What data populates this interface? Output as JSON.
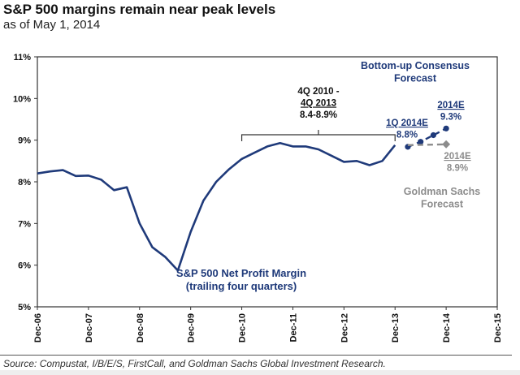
{
  "header": {
    "title": "S&P 500 margins remain near peak levels",
    "subtitle": "as of May 1, 2014"
  },
  "footer": {
    "source": "Source: Compustat, I/B/E/S, FirstCall, and Goldman Sachs Global Investment Research."
  },
  "chart_data": {
    "type": "line",
    "title": "S&P 500 margins remain near peak levels",
    "subtitle": "as of May 1, 2014",
    "xlabel": "",
    "ylabel": "",
    "ylim": [
      5,
      11
    ],
    "xlim": [
      2006.917,
      2015.917
    ],
    "grid": false,
    "y_ticks": [
      "5%",
      "6%",
      "7%",
      "8%",
      "9%",
      "10%",
      "11%"
    ],
    "y_tick_values": [
      5,
      6,
      7,
      8,
      9,
      10,
      11
    ],
    "x_ticks": [
      "Dec-06",
      "Dec-07",
      "Dec-08",
      "Dec-09",
      "Dec-10",
      "Dec-11",
      "Dec-12",
      "Dec-13",
      "Dec-14",
      "Dec-15"
    ],
    "series": [
      {
        "name": "S&P 500 Net Profit Margin (trailing four quarters)",
        "color": "#1f3a7a",
        "style": "solid",
        "x": [
          "4Q06",
          "1Q07",
          "2Q07",
          "3Q07",
          "4Q07",
          "1Q08",
          "2Q08",
          "3Q08",
          "4Q08",
          "1Q09",
          "2Q09",
          "3Q09",
          "4Q09",
          "1Q10",
          "2Q10",
          "3Q10",
          "4Q10",
          "1Q11",
          "2Q11",
          "3Q11",
          "4Q11",
          "1Q12",
          "2Q12",
          "3Q12",
          "4Q12",
          "1Q13",
          "2Q13",
          "3Q13",
          "4Q13"
        ],
        "values": [
          8.2,
          8.25,
          8.28,
          8.14,
          8.15,
          8.05,
          7.8,
          7.87,
          7.0,
          6.43,
          6.2,
          5.87,
          6.8,
          7.55,
          8.0,
          8.3,
          8.55,
          8.7,
          8.85,
          8.93,
          8.85,
          8.85,
          8.78,
          8.63,
          8.48,
          8.5,
          8.4,
          8.5,
          8.88
        ]
      },
      {
        "name": "Bottom-up Consensus Forecast",
        "color": "#1f3a7a",
        "style": "dashed",
        "x": [
          "1Q14",
          "2Q14",
          "3Q14",
          "4Q14"
        ],
        "values": [
          8.84,
          8.96,
          9.12,
          9.28
        ]
      },
      {
        "name": "Goldman Sachs Forecast",
        "color": "#8c8c8c",
        "style": "dashed",
        "x": [
          "1Q14",
          "4Q14"
        ],
        "values": [
          8.88,
          8.9
        ]
      }
    ],
    "annotations": [
      {
        "id": "bracket",
        "lines": [
          "4Q 2010 -",
          "4Q 2013",
          "8.4-8.9%"
        ],
        "color": "#111111"
      },
      {
        "id": "consensus-label",
        "lines": [
          "Bottom-up Consensus",
          "Forecast"
        ],
        "color": "#1f3a7a"
      },
      {
        "id": "q1-2014e",
        "lines": [
          "1Q 2014E",
          "8.8%"
        ],
        "color": "#1f3a7a"
      },
      {
        "id": "consensus-2014e",
        "lines": [
          "2014E",
          "9.3%"
        ],
        "color": "#1f3a7a"
      },
      {
        "id": "gs-2014e",
        "lines": [
          "2014E",
          "8.9%"
        ],
        "color": "#8c8c8c"
      },
      {
        "id": "gs-label",
        "lines": [
          "Goldman Sachs",
          "Forecast"
        ],
        "color": "#8c8c8c"
      },
      {
        "id": "series-label",
        "lines": [
          "S&P 500 Net Profit  Margin",
          "(trailing four quarters)"
        ],
        "color": "#1f3a7a"
      }
    ]
  }
}
